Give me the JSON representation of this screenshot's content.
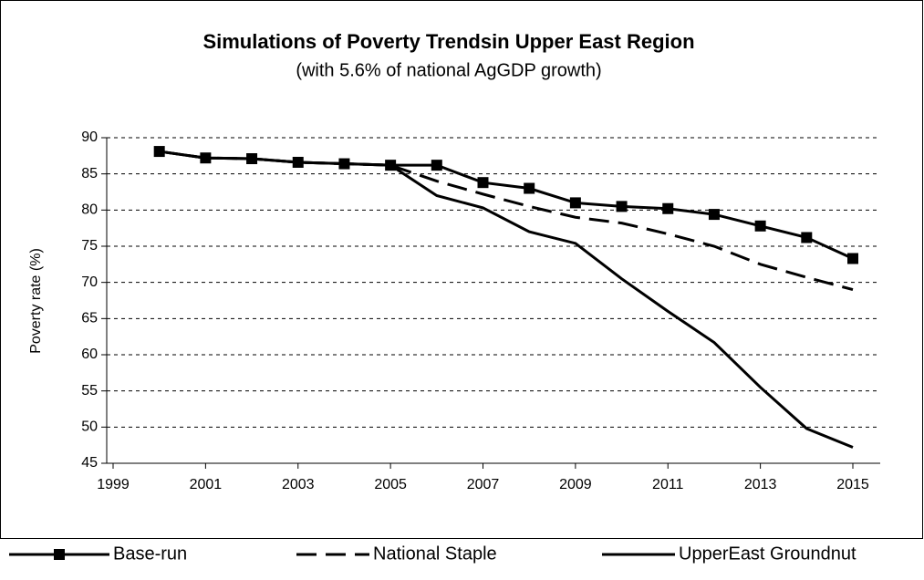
{
  "chart_data": {
    "type": "line",
    "title": "Simulations of Poverty Trendsin Upper East Region",
    "subtitle": "(with 5.6% of national AgGDP growth)",
    "y_label": "Poverty rate (%)",
    "x": [
      2000,
      2001,
      2002,
      2003,
      2004,
      2005,
      2006,
      2007,
      2008,
      2009,
      2010,
      2011,
      2012,
      2013,
      2014,
      2015
    ],
    "series": [
      {
        "name": "Base-run",
        "color": "#000000",
        "style": "solid-square",
        "values": [
          88.1,
          87.2,
          87.1,
          86.6,
          86.4,
          86.2,
          86.2,
          83.8,
          83.0,
          81.0,
          80.5,
          80.2,
          79.4,
          77.8,
          76.2,
          73.3
        ]
      },
      {
        "name": "National Staple",
        "color": "#000000",
        "style": "dashed",
        "values": [
          88.1,
          87.2,
          87.1,
          86.6,
          86.4,
          86.2,
          84.0,
          82.2,
          80.5,
          79.0,
          78.2,
          76.7,
          75.0,
          72.5,
          70.7,
          69.0
        ]
      },
      {
        "name": "UpperEast Groundnut",
        "color": "#000000",
        "style": "solid",
        "values": [
          88.1,
          87.2,
          87.1,
          86.6,
          86.4,
          86.2,
          82.0,
          80.3,
          77.0,
          75.4,
          70.5,
          66.0,
          61.7,
          55.5,
          49.8,
          47.2
        ]
      }
    ],
    "xlim": [
      1999,
      2015
    ],
    "xticks": [
      1999,
      2001,
      2003,
      2005,
      2007,
      2009,
      2011,
      2013,
      2015
    ],
    "ylim": [
      45,
      90
    ],
    "yticks": [
      45,
      50,
      55,
      60,
      65,
      70,
      75,
      80,
      85,
      90
    ],
    "grid": true,
    "legend": "bottom"
  }
}
